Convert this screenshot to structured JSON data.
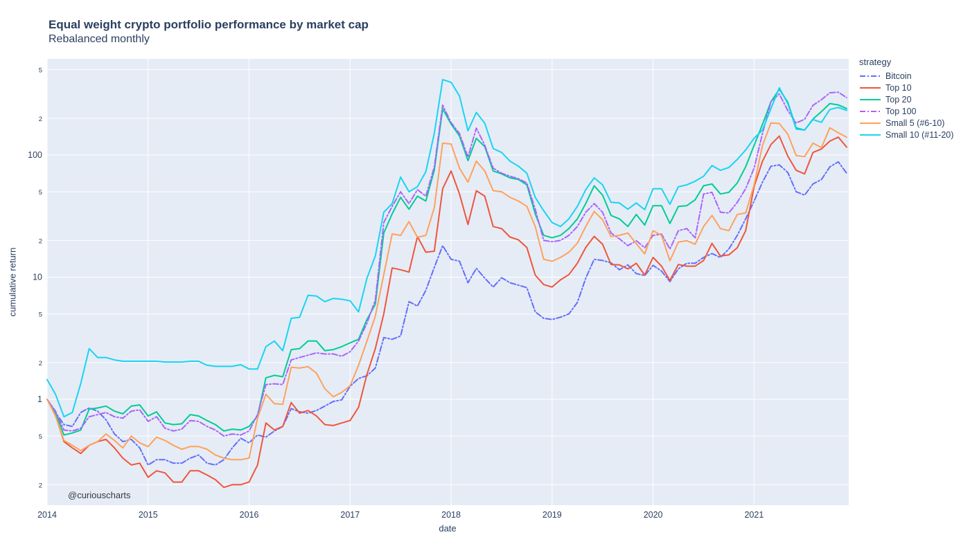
{
  "header": {
    "title": "Equal weight crypto portfolio performance by market cap",
    "subtitle": "Rebalanced monthly"
  },
  "annotation": {
    "text": "@curiouscharts"
  },
  "chart_data": {
    "type": "line",
    "title": "Equal weight crypto portfolio performance by market cap",
    "subtitle": "Rebalanced monthly",
    "xlabel": "date",
    "ylabel": "cumulative return",
    "legend_title": "strategy",
    "y_scale": "log",
    "grid": true,
    "legend_position": "right",
    "plot_bg": "#E5ECF6",
    "grid_color": "#FFFFFF",
    "text_color": "#2a3f5f",
    "x_start": "2014-01",
    "x_frequency": "monthly",
    "x_tick_labels": [
      "2014",
      "2015",
      "2016",
      "2017",
      "2018",
      "2019",
      "2020",
      "2021"
    ],
    "ylim": [
      0.17,
      600
    ],
    "y_ticks": [
      {
        "value": 0.2,
        "label": "2",
        "minor": true
      },
      {
        "value": 0.5,
        "label": "5",
        "minor": true
      },
      {
        "value": 1,
        "label": "1",
        "minor": false
      },
      {
        "value": 2,
        "label": "2",
        "minor": true
      },
      {
        "value": 5,
        "label": "5",
        "minor": true
      },
      {
        "value": 10,
        "label": "10",
        "minor": false
      },
      {
        "value": 20,
        "label": "2",
        "minor": true
      },
      {
        "value": 50,
        "label": "5",
        "minor": true
      },
      {
        "value": 100,
        "label": "100",
        "minor": false
      },
      {
        "value": 200,
        "label": "2",
        "minor": true
      },
      {
        "value": 500,
        "label": "5",
        "minor": true
      }
    ],
    "series": [
      {
        "name": "Bitcoin",
        "color": "#636EFA",
        "dash": "dashdot",
        "values": [
          1.0,
          0.78,
          0.62,
          0.6,
          0.78,
          0.85,
          0.8,
          0.68,
          0.52,
          0.45,
          0.47,
          0.4,
          0.29,
          0.32,
          0.32,
          0.3,
          0.3,
          0.33,
          0.35,
          0.3,
          0.29,
          0.32,
          0.4,
          0.48,
          0.44,
          0.51,
          0.49,
          0.55,
          0.6,
          0.84,
          0.79,
          0.77,
          0.81,
          0.88,
          0.96,
          0.99,
          1.28,
          1.48,
          1.56,
          1.8,
          3.2,
          3.1,
          3.3,
          6.3,
          5.8,
          7.8,
          12.0,
          18.1,
          14.0,
          13.5,
          9.0,
          11.8,
          9.8,
          8.3,
          9.9,
          9.0,
          8.6,
          8.2,
          5.2,
          4.6,
          4.5,
          4.7,
          5.0,
          6.2,
          9.8,
          14.0,
          13.7,
          13.1,
          11.5,
          12.6,
          10.7,
          10.3,
          12.5,
          11.2,
          9.2,
          11.7,
          13.0,
          13.0,
          14.5,
          15.6,
          14.5,
          17.0,
          22.0,
          30.0,
          42,
          60,
          81,
          83,
          72,
          50,
          47,
          58,
          63,
          80,
          88,
          71
        ]
      },
      {
        "name": "Top 10",
        "color": "#EF553B",
        "dash": "solid",
        "values": [
          1.0,
          0.74,
          0.45,
          0.4,
          0.36,
          0.42,
          0.45,
          0.47,
          0.4,
          0.33,
          0.29,
          0.3,
          0.23,
          0.26,
          0.25,
          0.21,
          0.21,
          0.26,
          0.26,
          0.24,
          0.22,
          0.19,
          0.2,
          0.2,
          0.21,
          0.29,
          0.64,
          0.56,
          0.6,
          0.94,
          0.77,
          0.81,
          0.73,
          0.62,
          0.61,
          0.64,
          0.67,
          0.86,
          1.6,
          2.6,
          5.0,
          11.9,
          11.5,
          11.0,
          21.5,
          16.0,
          16.3,
          53,
          74,
          48,
          27,
          51,
          46,
          26,
          25,
          21.3,
          20.2,
          17.5,
          10.4,
          8.7,
          8.3,
          9.5,
          10.5,
          13.0,
          17.5,
          21.6,
          18.6,
          12.7,
          12.6,
          11.7,
          13.0,
          10.4,
          14.5,
          12.3,
          9.4,
          12.7,
          12.3,
          12.3,
          13.7,
          18.9,
          14.9,
          15.2,
          17.4,
          24,
          55,
          89,
          122,
          143,
          98,
          75,
          70,
          105,
          112,
          130,
          140,
          116
        ]
      },
      {
        "name": "Top 20",
        "color": "#00CC96",
        "dash": "solid",
        "values": [
          1.0,
          0.78,
          0.51,
          0.53,
          0.56,
          0.83,
          0.85,
          0.88,
          0.8,
          0.76,
          0.88,
          0.9,
          0.73,
          0.79,
          0.64,
          0.62,
          0.63,
          0.75,
          0.73,
          0.67,
          0.62,
          0.55,
          0.57,
          0.56,
          0.6,
          0.73,
          1.5,
          1.57,
          1.53,
          2.55,
          2.6,
          3.0,
          3.0,
          2.5,
          2.55,
          2.7,
          2.9,
          3.1,
          4.5,
          6.0,
          23,
          33,
          45,
          36,
          46,
          42,
          75,
          239,
          179,
          143,
          90,
          137,
          117,
          74,
          70,
          65,
          63,
          57,
          33,
          22,
          21,
          22,
          25,
          30,
          40,
          56,
          47,
          32,
          30,
          26,
          32.6,
          26.7,
          38.5,
          38.5,
          27.5,
          38,
          38.5,
          43,
          56,
          58,
          48,
          49.5,
          59,
          80,
          120,
          178,
          273,
          345,
          271,
          167,
          160,
          197,
          227,
          264,
          257,
          240
        ]
      },
      {
        "name": "Top 100",
        "color": "#AB63FA",
        "dash": "dashdot",
        "values": [
          1.0,
          0.8,
          0.56,
          0.55,
          0.58,
          0.72,
          0.75,
          0.78,
          0.72,
          0.7,
          0.8,
          0.82,
          0.66,
          0.72,
          0.58,
          0.55,
          0.57,
          0.67,
          0.66,
          0.6,
          0.56,
          0.5,
          0.52,
          0.51,
          0.55,
          0.75,
          1.32,
          1.34,
          1.32,
          2.1,
          2.2,
          2.3,
          2.4,
          2.35,
          2.35,
          2.25,
          2.45,
          3.0,
          4.2,
          6.5,
          28,
          38,
          50,
          40,
          52,
          46,
          80,
          256,
          184,
          150,
          96,
          166,
          120,
          78,
          71,
          67,
          64,
          59,
          36,
          20,
          19.5,
          20,
          22,
          26,
          34,
          40,
          34,
          23,
          20.6,
          18.1,
          19.9,
          17.4,
          22,
          22.5,
          17.0,
          24,
          25,
          21,
          48,
          49.5,
          34,
          33.5,
          41,
          53,
          78,
          150,
          273,
          316,
          231,
          183,
          196,
          255,
          284,
          323,
          327,
          295
        ]
      },
      {
        "name": "Small 5 (#6-10)",
        "color": "#FFA15A",
        "dash": "solid",
        "values": [
          1.0,
          0.73,
          0.46,
          0.42,
          0.38,
          0.42,
          0.45,
          0.52,
          0.46,
          0.4,
          0.5,
          0.44,
          0.41,
          0.49,
          0.46,
          0.42,
          0.39,
          0.41,
          0.41,
          0.39,
          0.35,
          0.33,
          0.32,
          0.32,
          0.33,
          0.7,
          1.1,
          0.92,
          0.91,
          1.83,
          1.8,
          1.85,
          1.64,
          1.22,
          1.05,
          1.14,
          1.29,
          1.9,
          3.0,
          4.8,
          10.5,
          22.6,
          22,
          28.5,
          21.2,
          22,
          37,
          125,
          123,
          78,
          60,
          89,
          74,
          51,
          50,
          45,
          42,
          38,
          26,
          14,
          13.5,
          14.5,
          16,
          19,
          26,
          34.5,
          29.5,
          21.5,
          22,
          23,
          18.8,
          15.5,
          24,
          22,
          13.6,
          19.4,
          19.9,
          18.6,
          26,
          32,
          25,
          24,
          32.6,
          33.5,
          57,
          120,
          183,
          181,
          148,
          99,
          97,
          125,
          115,
          167,
          152,
          140
        ]
      },
      {
        "name": "Small 10 (#11-20)",
        "color": "#19D3F3",
        "dash": "solid",
        "values": [
          1.45,
          1.1,
          0.72,
          0.78,
          1.35,
          2.6,
          2.2,
          2.2,
          2.1,
          2.05,
          2.05,
          2.05,
          2.05,
          2.05,
          2.02,
          2.02,
          2.02,
          2.05,
          2.05,
          1.9,
          1.86,
          1.86,
          1.86,
          1.92,
          1.77,
          1.77,
          2.7,
          3.0,
          2.5,
          4.6,
          4.7,
          7.1,
          7.0,
          6.3,
          6.7,
          6.6,
          6.4,
          5.2,
          9.8,
          14.9,
          34,
          40,
          66,
          50,
          55,
          73,
          150,
          414,
          394,
          304,
          158,
          223,
          182,
          113,
          105,
          89,
          81,
          71,
          45,
          35,
          28,
          26,
          30,
          38,
          52,
          65,
          57,
          41,
          40.5,
          36,
          40.5,
          35.7,
          53,
          53,
          39.5,
          55,
          57,
          61,
          67,
          82,
          75,
          79,
          92,
          110,
          137,
          160,
          240,
          355,
          264,
          163,
          160,
          195,
          185,
          236,
          245,
          232
        ]
      }
    ]
  }
}
